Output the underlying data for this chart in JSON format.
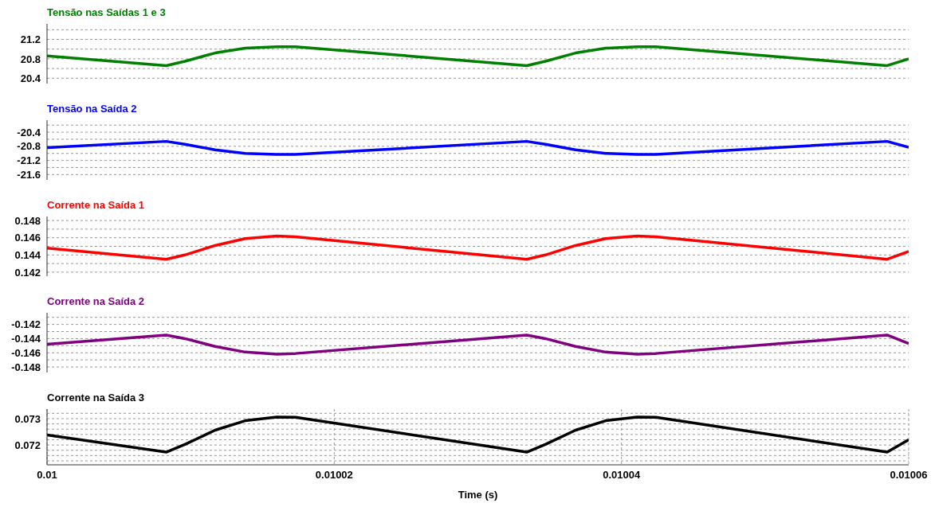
{
  "chart_data": [
    {
      "type": "line",
      "title": "Tensão nas Saídas 1 e 3",
      "x": [
        0.01,
        0.0100083,
        0.0100096,
        0.0100117,
        0.0100138,
        0.010016,
        0.0100173,
        0.0100334,
        0.0100347,
        0.0100368,
        0.0100389,
        0.0100411,
        0.0100424,
        0.0100585,
        0.01006
      ],
      "series": [
        {
          "color": "#008000",
          "values": [
            20.86,
            20.66,
            20.75,
            20.92,
            21.02,
            21.05,
            21.05,
            20.66,
            20.75,
            20.92,
            21.02,
            21.05,
            21.05,
            20.66,
            20.8
          ]
        }
      ],
      "xlim": [
        0.01,
        0.01006
      ],
      "xticks": [
        0.01,
        0.01002,
        0.01004,
        0.01006
      ],
      "ylim": [
        20.29,
        21.52
      ],
      "yticks": [
        20.4,
        {
          "value": 20.6,
          "label": null
        },
        20.8,
        {
          "value": 21.0,
          "label": null
        },
        21.2,
        {
          "value": 21.4,
          "label": null
        }
      ],
      "grid": true,
      "tick_labels": "y",
      "marker": "none",
      "line_style": "solid"
    },
    {
      "type": "line",
      "title": "Tensão na Saída 2",
      "x": [
        0.01,
        0.0100083,
        0.0100096,
        0.0100117,
        0.0100138,
        0.010016,
        0.0100173,
        0.0100334,
        0.0100347,
        0.0100368,
        0.0100389,
        0.0100411,
        0.0100424,
        0.0100585,
        0.01006
      ],
      "series": [
        {
          "color": "#0000ff",
          "values": [
            -20.84,
            -20.66,
            -20.74,
            -20.9,
            -21.0,
            -21.03,
            -21.03,
            -20.66,
            -20.74,
            -20.9,
            -21.0,
            -21.03,
            -21.03,
            -20.66,
            -20.83
          ]
        }
      ],
      "xlim": [
        0.01,
        0.01006
      ],
      "xticks": [
        0.01,
        0.01002,
        0.01004,
        0.01006
      ],
      "ylim": [
        -21.75,
        -20.06
      ],
      "yticks": [
        -21.6,
        {
          "value": -21.4,
          "label": null
        },
        -21.2,
        {
          "value": -21.0,
          "label": null
        },
        -20.8,
        {
          "value": -20.6,
          "label": null
        },
        -20.4,
        {
          "value": -20.2,
          "label": null
        }
      ],
      "grid": true,
      "tick_labels": "y",
      "marker": "none",
      "line_style": "solid"
    },
    {
      "type": "line",
      "title": "Corrente na Saída 1",
      "x": [
        0.01,
        0.0100083,
        0.0100096,
        0.0100117,
        0.0100138,
        0.010016,
        0.0100173,
        0.0100334,
        0.0100347,
        0.0100368,
        0.0100389,
        0.0100411,
        0.0100424,
        0.0100585,
        0.01006
      ],
      "series": [
        {
          "color": "#ff0000",
          "values": [
            0.1448,
            0.1435,
            0.144,
            0.1451,
            0.1459,
            0.1462,
            0.1461,
            0.1435,
            0.144,
            0.1451,
            0.1459,
            0.1462,
            0.1461,
            0.1435,
            0.1444
          ]
        }
      ],
      "xlim": [
        0.01,
        0.01006
      ],
      "xticks": [
        0.01,
        0.01002,
        0.01004,
        0.01006
      ],
      "ylim": [
        0.14153,
        0.14847
      ],
      "yticks": [
        0.142,
        {
          "value": 0.143,
          "label": null
        },
        0.144,
        {
          "value": 0.145,
          "label": null
        },
        0.146,
        {
          "value": 0.147,
          "label": null
        },
        0.148
      ],
      "grid": true,
      "tick_labels": "y",
      "marker": "none",
      "line_style": "solid"
    },
    {
      "type": "line",
      "title": "Corrente na Saída 2",
      "x": [
        0.01,
        0.0100083,
        0.0100096,
        0.0100117,
        0.0100138,
        0.010016,
        0.0100173,
        0.0100334,
        0.0100347,
        0.0100368,
        0.0100389,
        0.0100411,
        0.0100424,
        0.0100585,
        0.01006
      ],
      "series": [
        {
          "color": "#800080",
          "values": [
            -0.1448,
            -0.1435,
            -0.144,
            -0.1451,
            -0.1459,
            -0.1462,
            -0.1461,
            -0.1435,
            -0.144,
            -0.1451,
            -0.1459,
            -0.1462,
            -0.1461,
            -0.1435,
            -0.1447
          ]
        }
      ],
      "xlim": [
        0.01,
        0.01006
      ],
      "xticks": [
        0.01,
        0.01002,
        0.01004,
        0.01006
      ],
      "ylim": [
        -0.14878,
        -0.14036
      ],
      "yticks": [
        -0.148,
        {
          "value": -0.147,
          "label": null
        },
        -0.146,
        {
          "value": -0.145,
          "label": null
        },
        -0.144,
        {
          "value": -0.143,
          "label": null
        },
        -0.142,
        {
          "value": -0.141,
          "label": null
        }
      ],
      "grid": true,
      "tick_labels": "y",
      "marker": "none",
      "line_style": "solid"
    },
    {
      "type": "line",
      "title": "Corrente na Saída 3",
      "xlabel": "Time (s)",
      "x": [
        0.01,
        0.0100083,
        0.0100096,
        0.0100117,
        0.0100138,
        0.010016,
        0.0100173,
        0.0100334,
        0.0100347,
        0.0100368,
        0.0100389,
        0.0100411,
        0.0100424,
        0.0100585,
        0.01006
      ],
      "series": [
        {
          "color": "#000000",
          "values": [
            0.07238,
            0.07173,
            0.07202,
            0.07256,
            0.07292,
            0.07306,
            0.07305,
            0.07173,
            0.07202,
            0.07256,
            0.07292,
            0.07306,
            0.07305,
            0.07173,
            0.0722
          ]
        }
      ],
      "xlim": [
        0.01,
        0.01006
      ],
      "xticks": [
        0.01,
        0.01002,
        0.01004,
        0.01006
      ],
      "ylim": [
        0.07125,
        0.07336
      ],
      "yticks": [
        {
          "value": 0.0714,
          "label": null
        },
        {
          "value": 0.0716,
          "label": null
        },
        {
          "value": 0.0718,
          "label": null
        },
        0.072,
        {
          "value": 0.0722,
          "label": null
        },
        {
          "value": 0.0724,
          "label": null
        },
        {
          "value": 0.0726,
          "label": null
        },
        {
          "value": 0.0728,
          "label": null
        },
        0.073,
        {
          "value": 0.0732,
          "label": null
        }
      ],
      "grid": true,
      "marker": "none",
      "line_style": "solid"
    }
  ]
}
